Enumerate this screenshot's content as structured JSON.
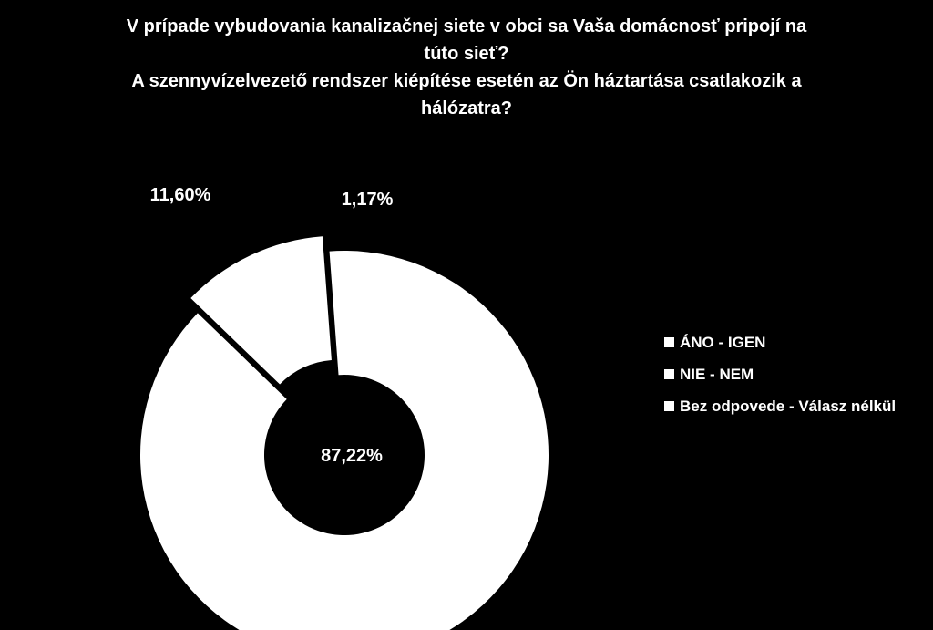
{
  "chart_data": {
    "type": "pie",
    "variant": "exploded-donut",
    "title": [
      "V prípade vybudovania kanalizačnej siete v obci sa Vaša domácnosť pripojí na",
      "túto sieť?",
      "A szennyvízelvezető rendszer kiépítése esetén az Ön háztartása csatlakozik a",
      "hálózatra?"
    ],
    "categories": [
      "ÁNO - IGEN",
      "NIE - NEM",
      "Bez odpovede - Válasz nélkül"
    ],
    "values": [
      87.22,
      11.6,
      1.17
    ],
    "value_labels": [
      "87,22%",
      "11,60%",
      "1,17%"
    ],
    "slice_color": "#ffffff",
    "background_color": "#000000",
    "legend_position": "right"
  }
}
